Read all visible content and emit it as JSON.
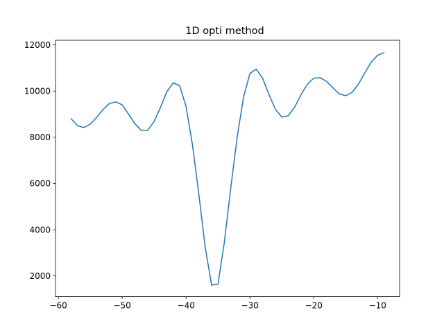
{
  "chart_data": {
    "type": "line",
    "title": "1D opti method",
    "xlabel": "",
    "ylabel": "",
    "xlim": [
      -60.45,
      -6.55
    ],
    "ylim": [
      1100,
      12200
    ],
    "xticks": [
      -60,
      -50,
      -40,
      -30,
      -20,
      -10
    ],
    "yticks": [
      2000,
      4000,
      6000,
      8000,
      10000,
      12000
    ],
    "xtick_labels": [
      "−60",
      "−50",
      "−40",
      "−30",
      "−20",
      "−10"
    ],
    "ytick_labels": [
      "2000",
      "4000",
      "6000",
      "8000",
      "10000",
      "12000"
    ],
    "grid": false,
    "legend": "none",
    "series": [
      {
        "color": "#1f77b4",
        "x": [
          -58,
          -57,
          -56,
          -55,
          -54,
          -53,
          -52,
          -51,
          -50,
          -49,
          -48,
          -47,
          -46,
          -45,
          -44,
          -43,
          -42,
          -41,
          -40,
          -39,
          -38,
          -37,
          -36,
          -35,
          -34,
          -33,
          -32,
          -31,
          -30,
          -29,
          -28,
          -27,
          -26,
          -25,
          -24,
          -23,
          -22,
          -21,
          -20,
          -19,
          -18,
          -17,
          -16,
          -15,
          -14,
          -13,
          -12,
          -11,
          -10,
          -9
        ],
        "y": [
          8800,
          8500,
          8420,
          8570,
          8860,
          9200,
          9460,
          9530,
          9400,
          9000,
          8580,
          8300,
          8300,
          8680,
          9300,
          9980,
          10360,
          10230,
          9330,
          7680,
          5540,
          3240,
          1600,
          1640,
          3460,
          5800,
          7990,
          9730,
          10760,
          10950,
          10550,
          9840,
          9210,
          8870,
          8930,
          9300,
          9840,
          10290,
          10560,
          10580,
          10420,
          10140,
          9880,
          9800,
          9940,
          10300,
          10790,
          11250,
          11550,
          11660
        ]
      }
    ]
  }
}
